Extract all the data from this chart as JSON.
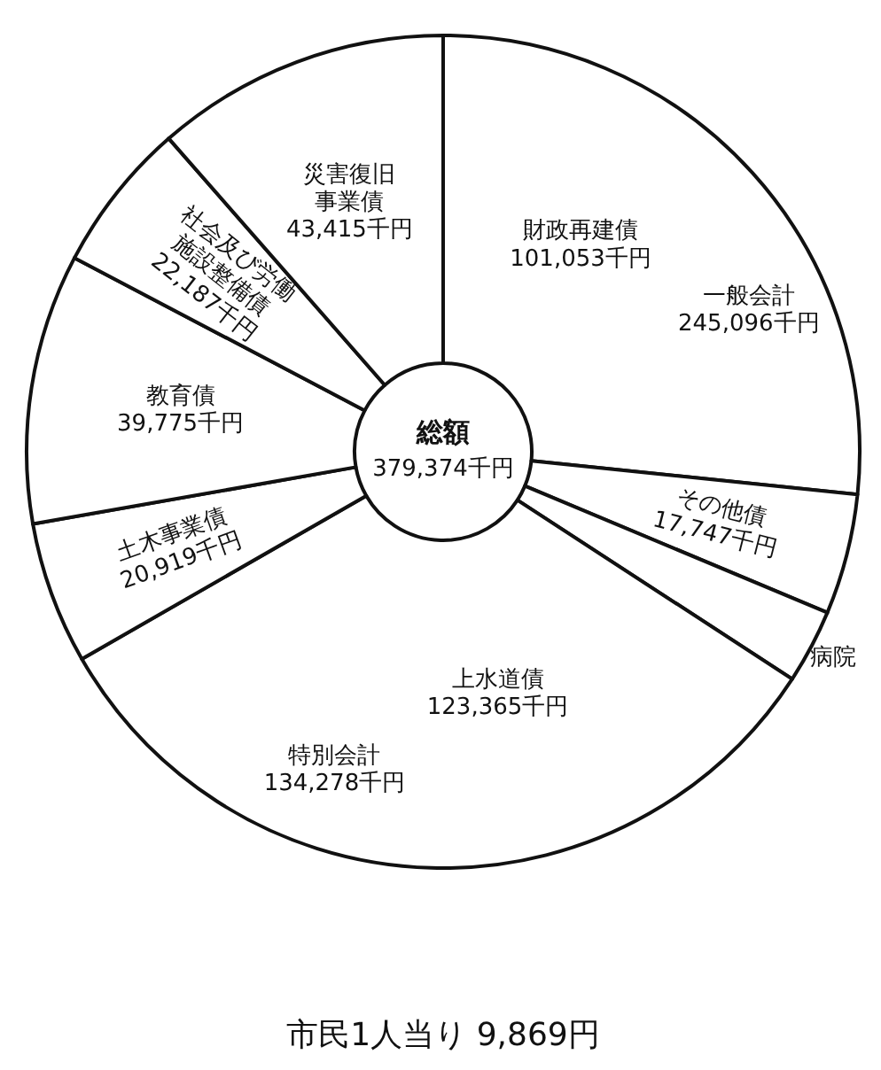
{
  "chart_data": {
    "type": "donut",
    "categories": [
      "財政再建債",
      "その他債",
      "病院",
      "上水道債",
      "土木事業債",
      "教育債",
      "社会及び労働施設整備債",
      "災害復旧事業債"
    ],
    "values": [
      101053,
      17747,
      10913,
      123365,
      20919,
      39775,
      22187,
      43415
    ],
    "colors": [
      "#ffffff",
      "#ffffff",
      "#ffffff",
      "#ffffff",
      "#ffffff",
      "#ffffff",
      "#ffffff",
      "#ffffff"
    ],
    "value_labels": [
      "101,053千円",
      "17,747千円",
      null,
      "123,365千円",
      "20,919千円",
      "39,775千円",
      "22,187千円",
      "43,415千円"
    ],
    "annotations": [
      "総額",
      "379,374千円",
      {
        "text": "一般会計 245,096千円",
        "x": "財政再建債"
      },
      {
        "text": "特別会計 134,278千円",
        "x": "上水道債"
      },
      "市民1人当り 9,869円"
    ]
  }
}
